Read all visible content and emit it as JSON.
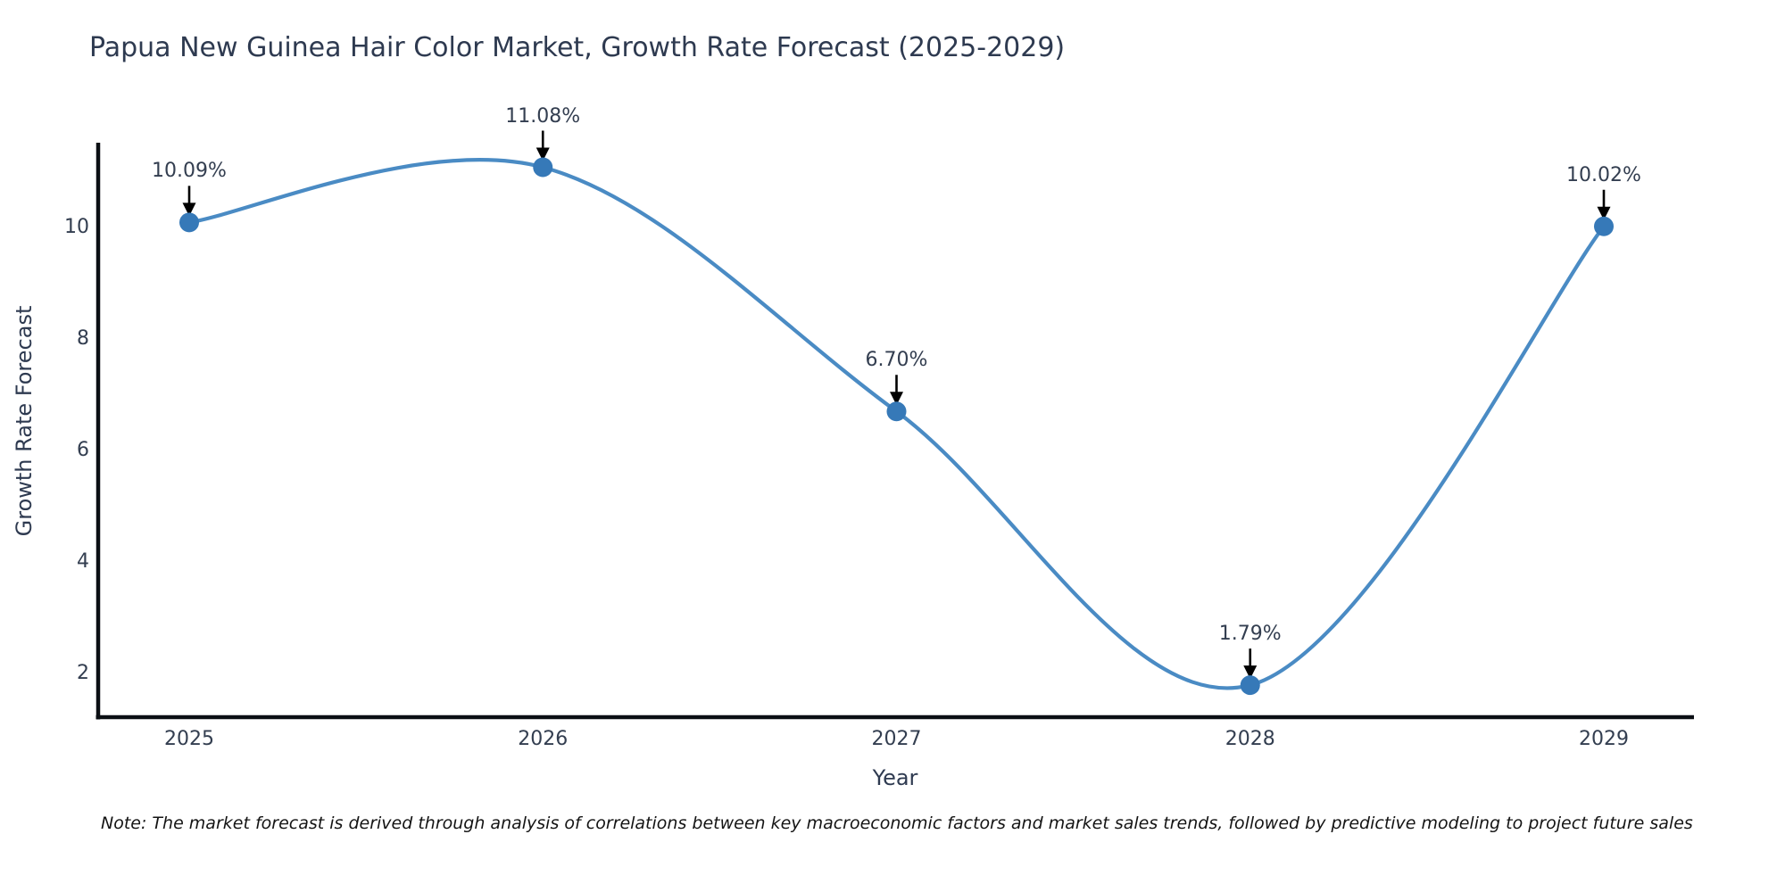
{
  "title": "Papua New Guinea Hair Color Market, Growth Rate Forecast (2025-2029)",
  "note": "Note: The market forecast is derived through analysis of correlations between key macroeconomic factors and market sales trends, followed by predictive modeling to project future sales",
  "colors": {
    "line": "#4a8bc4",
    "marker": "#3679b8",
    "axis": "#0b0f14",
    "arrow": "#000000",
    "text": "#333e50",
    "title_text": "#2e3a50"
  },
  "chart_data": {
    "type": "line",
    "line_shape": "spline",
    "title": "Papua New Guinea Hair Color Market, Growth Rate Forecast (2025-2029)",
    "x": [
      2025,
      2026,
      2027,
      2028,
      2029
    ],
    "values": [
      10.09,
      11.08,
      6.7,
      1.79,
      10.02
    ],
    "point_labels": [
      "10.09%",
      "11.08%",
      "6.70%",
      "1.79%",
      "10.02%"
    ],
    "x_tick_labels": [
      "2025",
      "2026",
      "2027",
      "2028",
      "2029"
    ],
    "y_ticks": [
      2,
      4,
      6,
      8,
      10
    ],
    "xlabel": "Year",
    "ylabel": "Growth Rate Forecast",
    "ylim": [
      1.2,
      11.5
    ],
    "grid": false,
    "legend": false,
    "marker_style": "circle",
    "annotation_style": "label-with-down-arrow"
  }
}
